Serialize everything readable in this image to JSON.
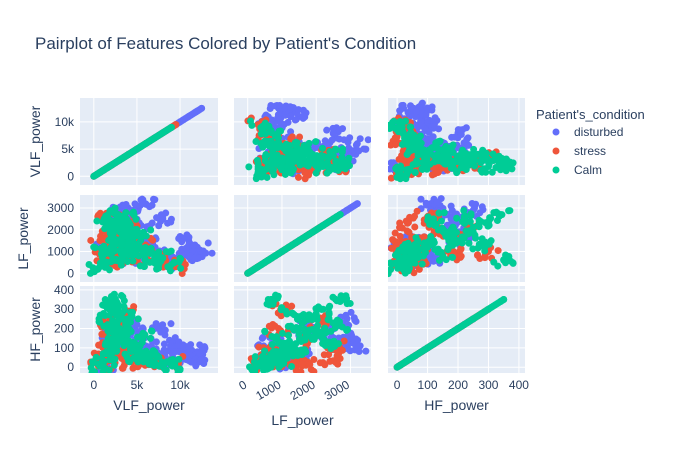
{
  "chart_data": {
    "type": "scatter",
    "subtype": "pairplot",
    "title": "Pairplot of Features Colored by Patient's Condition",
    "features": [
      "VLF_power",
      "LF_power",
      "HF_power"
    ],
    "axis_ranges": {
      "VLF_power": [
        -1600,
        14400
      ],
      "LF_power": [
        -400,
        3600
      ],
      "HF_power": [
        -30,
        420
      ]
    },
    "ticks": {
      "VLF_power": {
        "values": [
          0,
          5000,
          10000
        ],
        "labels": [
          "0",
          "5k",
          "10k"
        ]
      },
      "LF_power": {
        "values": [
          0,
          1000,
          2000,
          3000
        ],
        "labels": [
          "0",
          "1000",
          "2000",
          "3000"
        ]
      },
      "HF_power": {
        "values": [
          0,
          100,
          200,
          300,
          400
        ],
        "labels": [
          "0",
          "100",
          "200",
          "300",
          "400"
        ]
      }
    },
    "legend": {
      "title": "Patient's_condition",
      "placement": "right"
    },
    "grid": true,
    "series": [
      {
        "name": "disturbed",
        "color": "#636efa",
        "points": [
          [
            11000,
            1500,
            60
          ],
          [
            12500,
            900,
            55
          ],
          [
            9500,
            700,
            120
          ],
          [
            12000,
            1200,
            80
          ],
          [
            6000,
            3200,
            110
          ],
          [
            4000,
            3000,
            130
          ],
          [
            3000,
            2800,
            150
          ],
          [
            7000,
            1000,
            90
          ],
          [
            8000,
            2500,
            200
          ],
          [
            5000,
            1800,
            220
          ],
          [
            10000,
            800,
            100
          ],
          [
            2500,
            1600,
            180
          ],
          [
            3500,
            2900,
            250
          ],
          [
            6500,
            1400,
            60
          ],
          [
            9000,
            500,
            30
          ],
          [
            11800,
            1000,
            40
          ],
          [
            1500,
            1200,
            10
          ],
          [
            5500,
            2200,
            170
          ],
          [
            4500,
            600,
            90
          ],
          [
            2000,
            2600,
            120
          ]
        ]
      },
      {
        "name": "stress",
        "color": "#ef553b",
        "points": [
          [
            1800,
            900,
            200
          ],
          [
            2200,
            2100,
            240
          ],
          [
            2800,
            1400,
            60
          ],
          [
            9500,
            300,
            20
          ],
          [
            3200,
            1100,
            80
          ],
          [
            1200,
            700,
            40
          ],
          [
            4000,
            2400,
            30
          ],
          [
            2500,
            1800,
            140
          ],
          [
            5000,
            800,
            35
          ],
          [
            7000,
            600,
            25
          ],
          [
            3600,
            1000,
            300
          ],
          [
            1500,
            2600,
            100
          ],
          [
            3000,
            500,
            70
          ],
          [
            800,
            1700,
            10
          ],
          [
            6000,
            1300,
            15
          ]
        ]
      },
      {
        "name": "Calm",
        "color": "#00cc96",
        "points": [
          [
            2000,
            1200,
            100
          ],
          [
            2500,
            2700,
            340
          ],
          [
            3000,
            1500,
            200
          ],
          [
            3500,
            800,
            150
          ],
          [
            1800,
            2200,
            300
          ],
          [
            4000,
            1900,
            250
          ],
          [
            5000,
            1100,
            60
          ],
          [
            6000,
            900,
            40
          ],
          [
            8000,
            700,
            20
          ],
          [
            9000,
            400,
            10
          ],
          [
            2200,
            600,
            350
          ],
          [
            3800,
            2500,
            120
          ],
          [
            4500,
            1400,
            90
          ],
          [
            1200,
            1000,
            30
          ],
          [
            700,
            300,
            5
          ],
          [
            2800,
            2000,
            180
          ],
          [
            5500,
            1700,
            160
          ],
          [
            3300,
            1300,
            280
          ],
          [
            6500,
            500,
            50
          ],
          [
            1600,
            2600,
            220
          ]
        ]
      }
    ]
  }
}
